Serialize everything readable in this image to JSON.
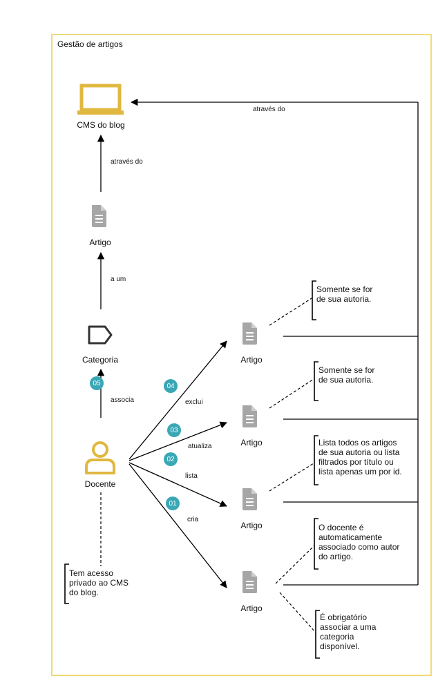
{
  "frame": {
    "title": "Gestão de artigos"
  },
  "nodes": {
    "cms": "CMS do blog",
    "artigo_top": "Artigo",
    "categoria": "Categoria",
    "docente": "Docente",
    "artigo_1": "Artigo",
    "artigo_2": "Artigo",
    "artigo_3": "Artigo",
    "artigo_4": "Artigo"
  },
  "edges": {
    "atraves_do_1": "através do",
    "atraves_do_2": "através do",
    "a_um": "a um",
    "associa": "associa",
    "exclui": "exclui",
    "atualiza": "atualiza",
    "lista": "lista",
    "cria": "cria"
  },
  "badges": {
    "b05": "05",
    "b04": "04",
    "b03": "03",
    "b02": "02",
    "b01": "01"
  },
  "notes": {
    "exclui": "Somente se for\nde sua autoria.",
    "atualiza": "Somente se for\nde sua autoria.",
    "lista": "Lista todos os artigos\nde sua autoria ou lista\nfiltrados por título ou\nlista apenas um por id.",
    "cria": "O docente é\nautomaticamente\nassociado como autor\ndo artigo.",
    "categoria": "É obrigatório\nassociar a uma\ncategoria\ndisponível.",
    "docente": "Tem acesso\nprivado ao CMS\ndo blog."
  },
  "colors": {
    "frame": "#f2da7a",
    "accent": "#e0b840",
    "badge": "#3aa7b5",
    "doc_icon": "#a6a6a6",
    "tag_icon": "#333333"
  }
}
